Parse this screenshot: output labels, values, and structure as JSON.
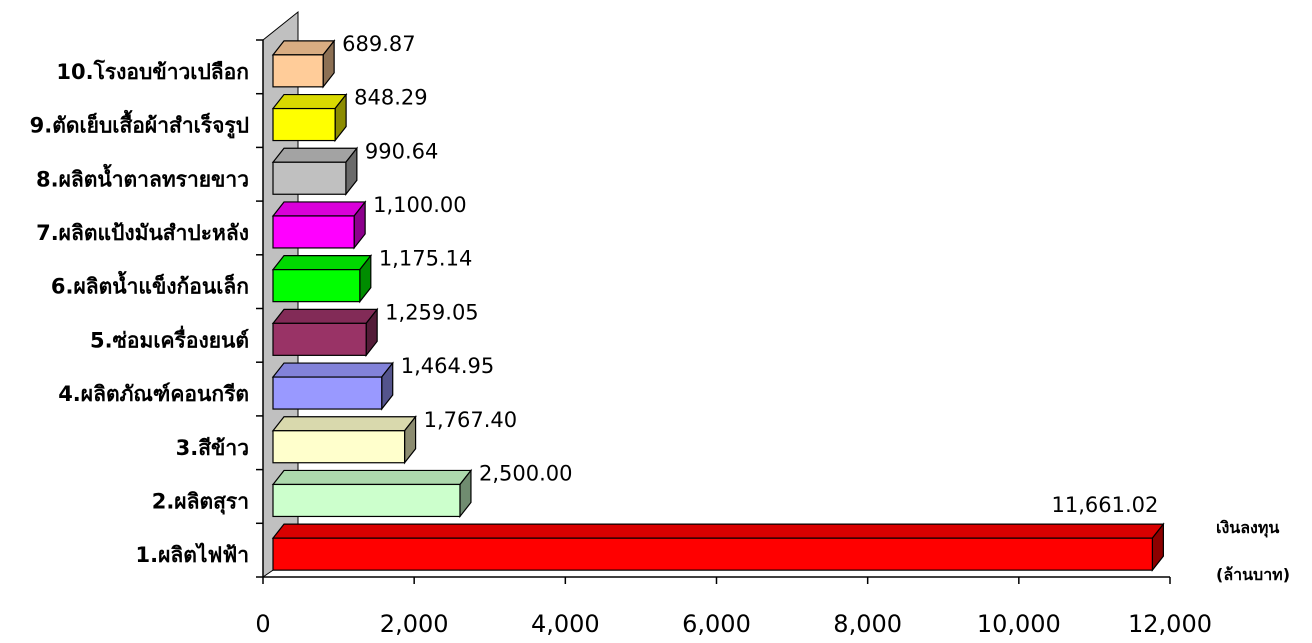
{
  "chart_data": {
    "type": "bar",
    "orientation": "horizontal",
    "style": "3d",
    "xlabel": "เงินลงทุน (ล้านบาท)",
    "xlabel_lines": [
      "เงินลงทุน",
      "(ล้านบาท)"
    ],
    "xlim": [
      0,
      12000
    ],
    "xticks": [
      0,
      2000,
      4000,
      6000,
      8000,
      10000,
      12000
    ],
    "xtick_labels": [
      "0",
      "2,000",
      "4,000",
      "6,000",
      "8,000",
      "10,000",
      "12,000"
    ],
    "grid": false,
    "legend": "none",
    "categories": [
      "1.ผลิตไฟฟ้า",
      "2.ผลิตสุรา",
      "3.สีข้าว",
      "4.ผลิตภัณฑ์คอนกรีต",
      "5.ซ่อมเครื่องยนต์",
      "6.ผลิตน้ำแข็งก้อนเล็ก",
      "7.ผลิตแป้งมันสำปะหลัง",
      "8.ผลิตน้ำตาลทรายขาว",
      "9.ตัดเย็บเสื้อผ้าสำเร็จรูป",
      "10.โรงอบข้าวเปลือก"
    ],
    "values": [
      11661.02,
      2500.0,
      1767.4,
      1464.95,
      1259.05,
      1175.14,
      1100.0,
      990.64,
      848.29,
      689.87
    ],
    "value_labels": [
      "11,661.02",
      "2,500.00",
      "1,767.40",
      "1,464.95",
      "1,259.05",
      "1,175.14",
      "1,100.00",
      "990.64",
      "848.29",
      "689.87"
    ],
    "colors": [
      "#ff0000",
      "#ccffcc",
      "#ffffcc",
      "#9999ff",
      "#993366",
      "#00ff00",
      "#ff00ff",
      "#c0c0c0",
      "#ffff00",
      "#ffcc99"
    ],
    "wall_color": "#c0c0c0"
  }
}
